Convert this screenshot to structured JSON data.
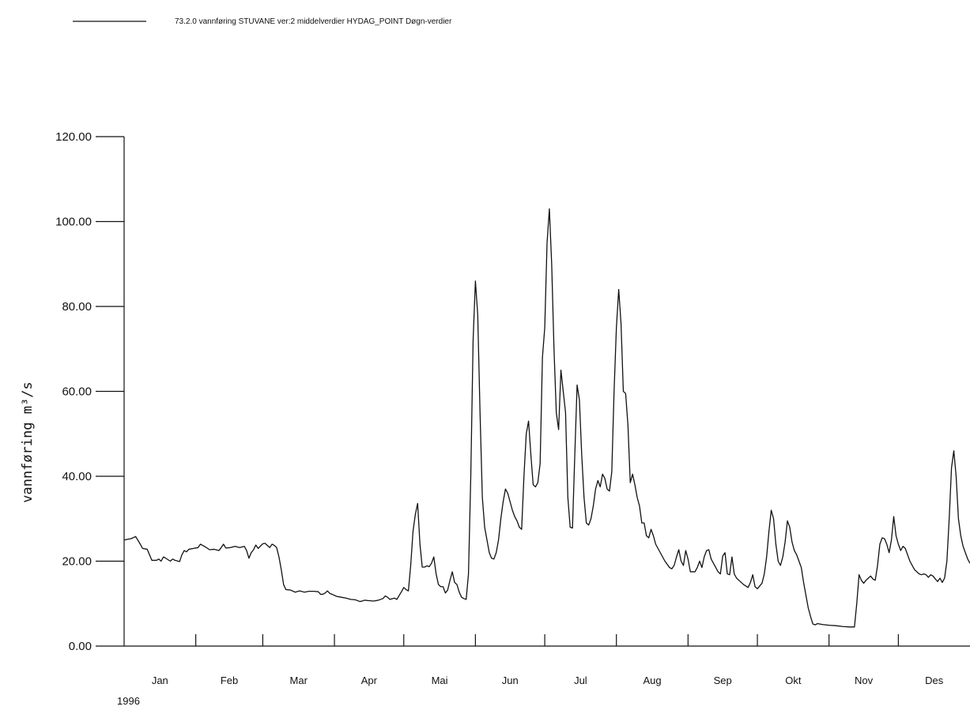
{
  "chart_data": {
    "type": "line",
    "legend": {
      "label": "73.2.0 vannføring STUVANE ver:2 middelverdier HYDAG_POINT Døgn-verdier",
      "placement": "top-left"
    },
    "ylabel": "vannføring  m³/s",
    "year_label": "1996",
    "ylim": [
      0,
      120
    ],
    "yticks": [
      "0.00",
      "20.00",
      "40.00",
      "60.00",
      "80.00",
      "100.00",
      "120.00"
    ],
    "x_range_days": [
      0,
      366
    ],
    "months": [
      "Jan",
      "Feb",
      "Mar",
      "Apr",
      "Mai",
      "Jun",
      "Jul",
      "Aug",
      "Sep",
      "Okt",
      "Nov",
      "Des"
    ],
    "series": [
      {
        "color": "#111111",
        "points": [
          [
            0,
            25
          ],
          [
            3,
            25.3
          ],
          [
            5,
            25.8
          ],
          [
            7,
            24
          ],
          [
            8,
            23
          ],
          [
            10,
            22.8
          ],
          [
            11,
            21.5
          ],
          [
            12,
            20.2
          ],
          [
            14,
            20.2
          ],
          [
            15,
            20.5
          ],
          [
            16,
            20
          ],
          [
            17,
            21
          ],
          [
            18,
            20.7
          ],
          [
            20,
            20
          ],
          [
            21,
            20.5
          ],
          [
            22,
            20.2
          ],
          [
            24,
            19.9
          ],
          [
            25,
            21.5
          ],
          [
            26,
            22.5
          ],
          [
            27,
            22.2
          ],
          [
            28,
            22.8
          ],
          [
            30,
            23
          ],
          [
            32,
            23.2
          ],
          [
            33,
            24
          ],
          [
            35,
            23.4
          ],
          [
            37,
            22.7
          ],
          [
            39,
            22.8
          ],
          [
            41,
            22.5
          ],
          [
            42,
            23.2
          ],
          [
            43,
            24
          ],
          [
            44,
            23.1
          ],
          [
            46,
            23.2
          ],
          [
            48,
            23.5
          ],
          [
            50,
            23.2
          ],
          [
            52,
            23.5
          ],
          [
            53,
            22.5
          ],
          [
            54,
            20.7
          ],
          [
            55,
            22
          ],
          [
            56,
            22.7
          ],
          [
            57,
            23.8
          ],
          [
            58,
            23
          ],
          [
            60,
            24.1
          ],
          [
            61,
            24.2
          ],
          [
            62,
            23.7
          ],
          [
            63,
            23.2
          ],
          [
            64,
            24
          ],
          [
            65,
            23.7
          ],
          [
            66,
            23.2
          ],
          [
            67,
            21
          ],
          [
            68,
            18
          ],
          [
            69,
            14.5
          ],
          [
            70,
            13.3
          ],
          [
            72,
            13.2
          ],
          [
            74,
            12.7
          ],
          [
            76,
            13
          ],
          [
            78,
            12.7
          ],
          [
            80,
            12.9
          ],
          [
            82,
            12.9
          ],
          [
            84,
            12.8
          ],
          [
            85,
            12.2
          ],
          [
            86,
            12.2
          ],
          [
            87,
            12.5
          ],
          [
            88,
            13
          ],
          [
            89,
            12.4
          ],
          [
            90,
            12.2
          ],
          [
            92,
            11.7
          ],
          [
            94,
            11.5
          ],
          [
            96,
            11.3
          ],
          [
            98,
            11
          ],
          [
            100,
            10.9
          ],
          [
            102,
            10.5
          ],
          [
            103,
            10.6
          ],
          [
            104,
            10.8
          ],
          [
            106,
            10.7
          ],
          [
            108,
            10.6
          ],
          [
            110,
            10.8
          ],
          [
            112,
            11.2
          ],
          [
            113,
            11.8
          ],
          [
            114,
            11.5
          ],
          [
            115,
            11
          ],
          [
            117,
            11.3
          ],
          [
            118,
            11
          ],
          [
            120,
            12.8
          ],
          [
            121,
            13.8
          ],
          [
            122,
            13.3
          ],
          [
            123,
            13
          ],
          [
            124,
            19
          ],
          [
            125,
            27
          ],
          [
            126,
            31
          ],
          [
            127,
            33.6
          ],
          [
            128,
            24
          ],
          [
            129,
            18.6
          ],
          [
            130,
            18.6
          ],
          [
            131,
            18.9
          ],
          [
            132,
            18.7
          ],
          [
            133,
            19.5
          ],
          [
            134,
            21
          ],
          [
            135,
            17
          ],
          [
            136,
            14.5
          ],
          [
            137,
            14
          ],
          [
            138,
            14
          ],
          [
            139,
            12.5
          ],
          [
            140,
            13.2
          ],
          [
            141,
            15.5
          ],
          [
            142,
            17.5
          ],
          [
            143,
            15
          ],
          [
            144,
            14.5
          ],
          [
            145,
            12.7
          ],
          [
            146,
            11.5
          ],
          [
            147,
            11.2
          ],
          [
            148,
            11
          ],
          [
            149,
            17
          ],
          [
            150,
            40
          ],
          [
            151,
            72
          ],
          [
            152,
            86
          ],
          [
            153,
            78
          ],
          [
            154,
            55
          ],
          [
            155,
            35
          ],
          [
            156,
            28
          ],
          [
            157,
            25
          ],
          [
            158,
            22
          ],
          [
            159,
            20.7
          ],
          [
            160,
            20.5
          ],
          [
            161,
            22
          ],
          [
            162,
            25
          ],
          [
            163,
            30
          ],
          [
            164,
            34
          ],
          [
            165,
            37
          ],
          [
            166,
            36
          ],
          [
            167,
            34
          ],
          [
            168,
            32
          ],
          [
            169,
            30.5
          ],
          [
            170,
            29.5
          ],
          [
            171,
            28
          ],
          [
            172,
            27.5
          ],
          [
            173,
            40
          ],
          [
            174,
            50
          ],
          [
            175,
            53
          ],
          [
            176,
            45
          ],
          [
            177,
            38
          ],
          [
            178,
            37.5
          ],
          [
            179,
            38.5
          ],
          [
            180,
            43
          ],
          [
            181,
            68
          ],
          [
            182,
            75
          ],
          [
            183,
            95
          ],
          [
            184,
            103
          ],
          [
            185,
            90
          ],
          [
            186,
            70
          ],
          [
            187,
            55
          ],
          [
            188,
            51
          ],
          [
            189,
            65
          ],
          [
            190,
            60
          ],
          [
            191,
            55
          ],
          [
            192,
            35
          ],
          [
            193,
            28
          ],
          [
            194,
            27.8
          ],
          [
            195,
            45
          ],
          [
            196,
            61.5
          ],
          [
            197,
            58
          ],
          [
            198,
            45
          ],
          [
            199,
            35
          ],
          [
            200,
            29
          ],
          [
            201,
            28.5
          ],
          [
            202,
            30
          ],
          [
            203,
            33
          ],
          [
            204,
            37
          ],
          [
            205,
            39
          ],
          [
            206,
            37.5
          ],
          [
            207,
            40.5
          ],
          [
            208,
            39.5
          ],
          [
            209,
            37
          ],
          [
            210,
            36.5
          ],
          [
            211,
            41
          ],
          [
            212,
            60
          ],
          [
            213,
            75
          ],
          [
            214,
            84
          ],
          [
            215,
            76
          ],
          [
            216,
            60
          ],
          [
            217,
            59.5
          ],
          [
            218,
            52
          ],
          [
            219,
            38.5
          ],
          [
            220,
            40.5
          ],
          [
            221,
            38
          ],
          [
            222,
            35
          ],
          [
            223,
            33
          ],
          [
            224,
            29
          ],
          [
            225,
            29
          ],
          [
            226,
            26
          ],
          [
            227,
            25.5
          ],
          [
            228,
            27.5
          ],
          [
            229,
            26
          ],
          [
            230,
            24
          ],
          [
            232,
            22
          ],
          [
            234,
            20
          ],
          [
            236,
            18.5
          ],
          [
            237,
            18.2
          ],
          [
            238,
            19
          ],
          [
            239,
            21
          ],
          [
            240,
            22.7
          ],
          [
            241,
            20
          ],
          [
            242,
            19
          ],
          [
            243,
            22.5
          ],
          [
            244,
            20.5
          ],
          [
            245,
            17.5
          ],
          [
            247,
            17.5
          ],
          [
            248,
            18.5
          ],
          [
            249,
            20
          ],
          [
            250,
            18.5
          ],
          [
            251,
            21
          ],
          [
            252,
            22.5
          ],
          [
            253,
            22.7
          ],
          [
            254,
            20.5
          ],
          [
            255,
            19.5
          ],
          [
            256,
            18.5
          ],
          [
            257,
            17.5
          ],
          [
            258,
            17
          ],
          [
            259,
            21.2
          ],
          [
            260,
            22
          ],
          [
            261,
            17
          ],
          [
            262,
            16.8
          ],
          [
            263,
            21
          ],
          [
            264,
            17
          ],
          [
            265,
            16
          ],
          [
            266,
            15.5
          ],
          [
            268,
            14.5
          ],
          [
            270,
            13.8
          ],
          [
            271,
            15
          ],
          [
            272,
            16.8
          ],
          [
            273,
            14
          ],
          [
            274,
            13.5
          ],
          [
            276,
            14.8
          ],
          [
            277,
            17
          ],
          [
            278,
            21
          ],
          [
            279,
            27
          ],
          [
            280,
            32
          ],
          [
            281,
            30
          ],
          [
            282,
            24
          ],
          [
            283,
            20
          ],
          [
            284,
            19
          ],
          [
            285,
            21
          ],
          [
            286,
            24.5
          ],
          [
            287,
            29.5
          ],
          [
            288,
            28
          ],
          [
            289,
            24.5
          ],
          [
            290,
            22.5
          ],
          [
            291,
            21.5
          ],
          [
            292,
            20
          ],
          [
            293,
            18.5
          ],
          [
            294,
            15
          ],
          [
            295,
            12
          ],
          [
            296,
            9
          ],
          [
            297,
            7
          ],
          [
            298,
            5.2
          ],
          [
            299,
            5
          ],
          [
            300,
            5.3
          ],
          [
            302,
            5.1
          ],
          [
            305,
            4.9
          ],
          [
            308,
            4.8
          ],
          [
            311,
            4.6
          ],
          [
            314,
            4.5
          ],
          [
            316,
            4.5
          ],
          [
            317,
            10
          ],
          [
            318,
            16.8
          ],
          [
            319,
            15.5
          ],
          [
            320,
            14.8
          ],
          [
            321,
            15.5
          ],
          [
            322,
            16
          ],
          [
            323,
            16.5
          ],
          [
            324,
            15.8
          ],
          [
            325,
            15.5
          ],
          [
            326,
            19
          ],
          [
            327,
            24
          ],
          [
            328,
            25.5
          ],
          [
            329,
            25.3
          ],
          [
            330,
            24
          ],
          [
            331,
            22
          ],
          [
            332,
            25
          ],
          [
            333,
            30.5
          ],
          [
            334,
            26
          ],
          [
            335,
            24
          ],
          [
            336,
            22.5
          ],
          [
            337,
            23.5
          ],
          [
            338,
            23
          ],
          [
            339,
            21.5
          ],
          [
            340,
            20
          ],
          [
            341,
            19
          ],
          [
            342,
            18
          ],
          [
            343,
            17.5
          ],
          [
            344,
            17
          ],
          [
            345,
            16.8
          ],
          [
            346,
            17
          ],
          [
            347,
            16.8
          ],
          [
            348,
            16.2
          ],
          [
            349,
            16.8
          ],
          [
            350,
            16.5
          ],
          [
            351,
            15.8
          ],
          [
            352,
            15.2
          ],
          [
            353,
            16
          ],
          [
            354,
            15
          ],
          [
            355,
            16
          ],
          [
            356,
            20
          ],
          [
            357,
            30
          ],
          [
            358,
            42
          ],
          [
            359,
            46
          ],
          [
            360,
            40
          ],
          [
            361,
            30
          ],
          [
            362,
            26
          ],
          [
            363,
            23.5
          ],
          [
            364,
            22
          ],
          [
            365,
            20.5
          ],
          [
            366,
            19.5
          ]
        ]
      }
    ]
  }
}
